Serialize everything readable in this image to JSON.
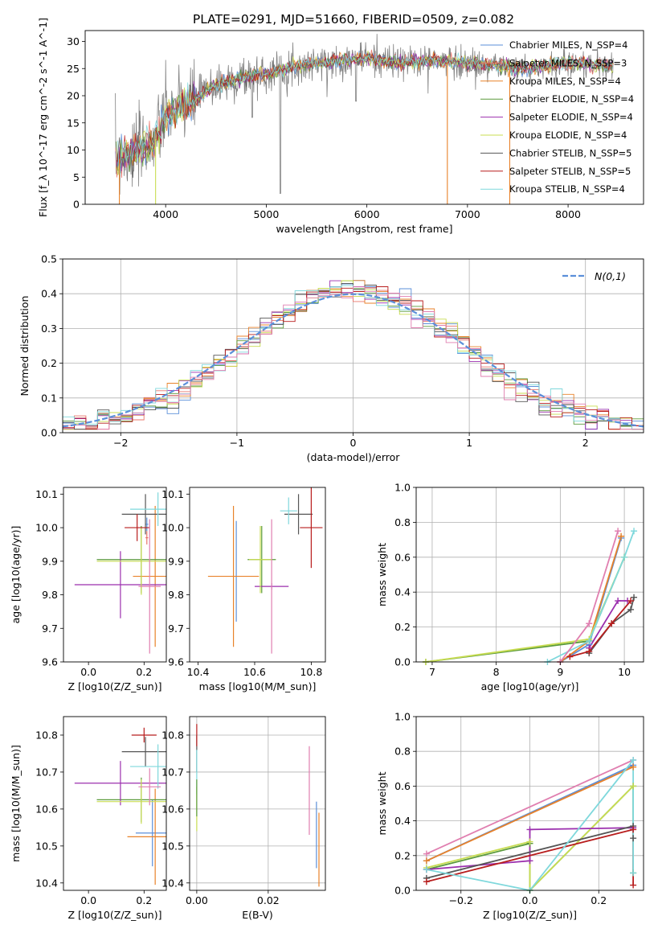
{
  "title": "PLATE=0291, MJD=51660, FIBERID=0509, z=0.082",
  "colors": {
    "Chabrier MILES": "#5b8fd9",
    "Salpeter MILES": "#e8756a",
    "Kroupa MILES": "#e8822a",
    "Chabrier ELODIE": "#5a9a3a",
    "Salpeter ELODIE": "#9b2fae",
    "Kroupa ELODIE": "#c8dc52",
    "Chabrier STELIB": "#555555",
    "Salpeter STELIB": "#b81d1d",
    "Kroupa STELIB": "#7fd8dc",
    "extra_pink": "#e07fb0",
    "normal_line": "#5b8fd9",
    "data_gray": "#808080"
  },
  "chart_data": [
    {
      "id": "spectrum",
      "type": "line",
      "title": "PLATE=0291, MJD=51660, FIBERID=0509, z=0.082",
      "xlabel": "wavelength [Angstrom, rest frame]",
      "ylabel": "Flux [f_λ 10^-17 erg cm^-2 s^-1 A^-1]",
      "xlim": [
        3200,
        8750
      ],
      "ylim": [
        0,
        32
      ],
      "xticks": [
        4000,
        5000,
        6000,
        7000,
        8000
      ],
      "yticks": [
        0,
        5,
        10,
        15,
        20,
        25,
        30
      ],
      "legend_position": "top-right",
      "legend": [
        "Chabrier MILES, N_SSP=4",
        "Salpeter MILES, N_SSP=3",
        "Kroupa MILES, N_SSP=4",
        "Chabrier ELODIE, N_SSP=4",
        "Salpeter ELODIE, N_SSP=4",
        "Kroupa ELODIE, N_SSP=4",
        "Chabrier STELIB, N_SSP=5",
        "Salpeter STELIB, N_SSP=5",
        "Kroupa STELIB, N_SSP=4"
      ],
      "continuum": {
        "x": [
          3500,
          3700,
          3900,
          4000,
          4100,
          4300,
          4500,
          4800,
          5000,
          5200,
          5500,
          5800,
          6000,
          6300,
          6600,
          7000,
          7300,
          7600,
          8000,
          8400
        ],
        "y": [
          8,
          9.5,
          12,
          16,
          17.5,
          19.5,
          22,
          23.5,
          24,
          25,
          26,
          26.5,
          27,
          26,
          26.5,
          26,
          25.5,
          25,
          26,
          25.5
        ]
      }
    },
    {
      "id": "residuals",
      "type": "histogram",
      "xlabel": "(data-model)/error",
      "ylabel": "Normed distribution",
      "xlim": [
        -2.5,
        2.5
      ],
      "ylim": [
        0,
        0.5
      ],
      "xticks": [
        -2,
        -1,
        0,
        1,
        2
      ],
      "yticks": [
        0.0,
        0.1,
        0.2,
        0.3,
        0.4,
        0.5
      ],
      "legend_position": "top-right",
      "legend": [
        "N(0,1)"
      ],
      "bin_width": 0.1,
      "grid": true
    },
    {
      "id": "age_vs_Z",
      "type": "scatter",
      "xlabel": "Z [log10(Z/Z_sun)]",
      "ylabel": "age  [log10(age/yr)]",
      "xlim": [
        -0.09,
        0.28
      ],
      "ylim": [
        9.6,
        10.12
      ],
      "xticks": [
        0.0,
        0.2
      ],
      "yticks": [
        9.6,
        9.7,
        9.8,
        9.9,
        10.0,
        10.1
      ],
      "points": [
        {
          "model": "Chabrier MILES",
          "x": 0.21,
          "y": 10.01,
          "xerr": 0.005,
          "yerr": 0.02
        },
        {
          "model": "Salpeter MILES",
          "x": 0.21,
          "y": 9.97,
          "xerr": 0.005,
          "yerr": 0.02
        },
        {
          "model": "Kroupa MILES",
          "x": 0.24,
          "y": 9.855,
          "xerr": 0.08,
          "yerr": 0.21
        },
        {
          "model": "Chabrier ELODIE",
          "x": 0.19,
          "y": 9.905,
          "xerr": 0.16,
          "yerr": 0.1
        },
        {
          "model": "Salpeter ELODIE",
          "x": 0.115,
          "y": 9.83,
          "xerr": 0.165,
          "yerr": 0.1
        },
        {
          "model": "Kroupa ELODIE",
          "x": 0.19,
          "y": 9.9,
          "xerr": 0.16,
          "yerr": 0.1
        },
        {
          "model": "Chabrier STELIB",
          "x": 0.205,
          "y": 10.04,
          "xerr": 0.085,
          "yerr": 0.06
        },
        {
          "model": "Salpeter STELIB",
          "x": 0.175,
          "y": 10.0,
          "xerr": 0.045,
          "yerr": 0.04
        },
        {
          "model": "Kroupa STELIB",
          "x": 0.25,
          "y": 10.055,
          "xerr": 0.1,
          "yerr": 0.05
        },
        {
          "model": "extra_pink",
          "x": 0.22,
          "y": 9.825,
          "xerr": 0.04,
          "yerr": 0.2
        }
      ]
    },
    {
      "id": "age_vs_mass",
      "type": "scatter",
      "xlabel": "mass [log10(M/M_sun)]",
      "ylabel": "",
      "xlim": [
        10.37,
        10.85
      ],
      "ylim": [
        9.6,
        10.12
      ],
      "xticks": [
        10.4,
        10.6,
        10.8
      ],
      "yticks": [
        9.6,
        9.7,
        9.8,
        9.9,
        10.0,
        10.1
      ],
      "points": [
        {
          "model": "Chabrier MILES",
          "x": 10.535,
          "y": 9.87,
          "xerr": 0.0,
          "yerr": 0.15
        },
        {
          "model": "Kroupa MILES",
          "x": 10.525,
          "y": 9.855,
          "xerr": 0.09,
          "yerr": 0.21
        },
        {
          "model": "Chabrier ELODIE",
          "x": 10.625,
          "y": 9.905,
          "xerr": 0.05,
          "yerr": 0.1
        },
        {
          "model": "Salpeter ELODIE",
          "x": 10.66,
          "y": 9.825,
          "xerr": 0.06,
          "yerr": 0.01
        },
        {
          "model": "Kroupa ELODIE",
          "x": 10.62,
          "y": 9.905,
          "xerr": 0.04,
          "yerr": 0.1
        },
        {
          "model": "Chabrier STELIB",
          "x": 10.755,
          "y": 10.04,
          "xerr": 0.05,
          "yerr": 0.06
        },
        {
          "model": "Salpeter STELIB",
          "x": 10.8,
          "y": 10.0,
          "xerr": 0.04,
          "yerr": 0.12
        },
        {
          "model": "Kroupa STELIB",
          "x": 10.72,
          "y": 10.05,
          "xerr": 0.03,
          "yerr": 0.04
        },
        {
          "model": "extra_pink",
          "x": 10.66,
          "y": 9.825,
          "xerr": 0.0,
          "yerr": 0.2
        }
      ]
    },
    {
      "id": "weight_vs_age",
      "type": "line",
      "xlabel": "age  [log10(age/yr)]",
      "ylabel": "mass weight",
      "xlim": [
        6.75,
        10.3
      ],
      "ylim": [
        0,
        1.0
      ],
      "xticks": [
        7,
        8,
        9,
        10
      ],
      "yticks": [
        0.0,
        0.2,
        0.4,
        0.6,
        0.8,
        1.0
      ],
      "grid": true,
      "series": [
        {
          "model": "Chabrier MILES",
          "x": [
            9.0,
            9.45,
            9.95
          ],
          "y": [
            0.0,
            0.1,
            0.71
          ]
        },
        {
          "model": "Kroupa MILES",
          "x": [
            9.0,
            9.45,
            9.95
          ],
          "y": [
            0.0,
            0.12,
            0.72
          ]
        },
        {
          "model": "Chabrier ELODIE",
          "x": [
            6.9,
            9.45,
            10.0
          ],
          "y": [
            0.0,
            0.12,
            0.6
          ]
        },
        {
          "model": "Kroupa ELODIE",
          "x": [
            6.9,
            9.45,
            10.0
          ],
          "y": [
            0.0,
            0.13,
            0.6
          ]
        },
        {
          "model": "Salpeter ELODIE",
          "x": [
            9.45,
            9.9,
            10.05
          ],
          "y": [
            0.08,
            0.35,
            0.35
          ]
        },
        {
          "model": "Chabrier STELIB",
          "x": [
            9.45,
            9.8,
            10.1,
            10.15
          ],
          "y": [
            0.05,
            0.22,
            0.3,
            0.37
          ]
        },
        {
          "model": "Salpeter STELIB",
          "x": [
            9.15,
            9.45,
            9.8,
            10.1
          ],
          "y": [
            0.03,
            0.06,
            0.22,
            0.35
          ]
        },
        {
          "model": "Kroupa STELIB",
          "x": [
            8.8,
            9.45,
            10.0,
            10.15
          ],
          "y": [
            0.0,
            0.12,
            0.6,
            0.75
          ]
        },
        {
          "model": "extra_pink",
          "x": [
            9.0,
            9.45,
            9.9
          ],
          "y": [
            0.0,
            0.22,
            0.75
          ]
        }
      ]
    },
    {
      "id": "mass_vs_Z",
      "type": "scatter",
      "xlabel": "Z [log10(Z/Z_sun)]",
      "ylabel": "mass [log10(M/M_sun)]",
      "xlim": [
        -0.09,
        0.28
      ],
      "ylim": [
        10.38,
        10.85
      ],
      "xticks": [
        0.0,
        0.2
      ],
      "yticks": [
        10.4,
        10.5,
        10.6,
        10.7,
        10.8
      ],
      "points": [
        {
          "model": "Chabrier MILES",
          "x": 0.23,
          "y": 10.535,
          "xerr": 0.06,
          "yerr": 0.09
        },
        {
          "model": "Kroupa MILES",
          "x": 0.24,
          "y": 10.525,
          "xerr": 0.1,
          "yerr": 0.13
        },
        {
          "model": "Chabrier ELODIE",
          "x": 0.19,
          "y": 10.625,
          "xerr": 0.16,
          "yerr": 0.06
        },
        {
          "model": "Salpeter ELODIE",
          "x": 0.115,
          "y": 10.67,
          "xerr": 0.165,
          "yerr": 0.06
        },
        {
          "model": "Kroupa ELODIE",
          "x": 0.19,
          "y": 10.62,
          "xerr": 0.16,
          "yerr": 0.06
        },
        {
          "model": "Chabrier STELIB",
          "x": 0.205,
          "y": 10.755,
          "xerr": 0.085,
          "yerr": 0.04
        },
        {
          "model": "Salpeter STELIB",
          "x": 0.2,
          "y": 10.8,
          "xerr": 0.045,
          "yerr": 0.02
        },
        {
          "model": "Kroupa STELIB",
          "x": 0.25,
          "y": 10.715,
          "xerr": 0.1,
          "yerr": 0.06
        },
        {
          "model": "extra_pink",
          "x": 0.22,
          "y": 10.66,
          "xerr": 0.04,
          "yerr": 0.05
        }
      ]
    },
    {
      "id": "mass_vs_ebv",
      "type": "scatter",
      "xlabel": "E(B-V)",
      "ylabel": "",
      "xlim": [
        -0.002,
        0.036
      ],
      "ylim": [
        10.38,
        10.85
      ],
      "xticks": [
        0.0,
        0.02
      ],
      "yticks": [
        10.4,
        10.5,
        10.6,
        10.7,
        10.8
      ],
      "grid": true,
      "points": [
        {
          "model": "Chabrier STELIB",
          "x": 0.0,
          "y": 10.75,
          "xerr": 0.0,
          "yerr": 0.05
        },
        {
          "model": "Salpeter STELIB",
          "x": 0.0,
          "y": 10.8,
          "xerr": 0.0,
          "yerr": 0.03
        },
        {
          "model": "Kroupa STELIB",
          "x": 0.0,
          "y": 10.7,
          "xerr": 0.0,
          "yerr": 0.06
        },
        {
          "model": "Kroupa ELODIE",
          "x": 0.0,
          "y": 10.6,
          "xerr": 0.0,
          "yerr": 0.06
        },
        {
          "model": "Chabrier ELODIE",
          "x": 0.0,
          "y": 10.63,
          "xerr": 0.0,
          "yerr": 0.05
        },
        {
          "model": "extra_pink",
          "x": 0.0315,
          "y": 10.65,
          "xerr": 0.0,
          "yerr": 0.12
        },
        {
          "model": "Chabrier MILES",
          "x": 0.0335,
          "y": 10.53,
          "xerr": 0.0,
          "yerr": 0.09
        },
        {
          "model": "Kroupa MILES",
          "x": 0.0342,
          "y": 10.49,
          "xerr": 0.0,
          "yerr": 0.1
        }
      ]
    },
    {
      "id": "weight_vs_Z",
      "type": "line",
      "xlabel": "Z [log10(Z/Z_sun)]",
      "ylabel": "mass weight",
      "xlim": [
        -0.33,
        0.33
      ],
      "ylim": [
        0,
        1.0
      ],
      "xticks": [
        -0.2,
        0.0,
        0.2
      ],
      "yticks": [
        0.0,
        0.2,
        0.4,
        0.6,
        0.8,
        1.0
      ],
      "grid": true,
      "series": [
        {
          "model": "Chabrier MILES",
          "x": [
            -0.3,
            0.3
          ],
          "y": [
            0.17,
            0.72
          ]
        },
        {
          "model": "Kroupa MILES",
          "x": [
            -0.3,
            0.3
          ],
          "y": [
            0.17,
            0.71
          ]
        },
        {
          "model": "extra_pink",
          "x": [
            -0.3,
            0.3
          ],
          "y": [
            0.21,
            0.75
          ]
        },
        {
          "model": "Chabrier ELODIE",
          "x": [
            -0.3,
            0.0,
            0.0,
            0.3,
            0.3
          ],
          "y": [
            0.12,
            0.27,
            0.0,
            0.6,
            0.1
          ]
        },
        {
          "model": "Kroupa ELODIE",
          "x": [
            -0.3,
            0.0,
            0.0,
            0.3
          ],
          "y": [
            0.13,
            0.28,
            0.0,
            0.6
          ]
        },
        {
          "model": "Salpeter ELODIE",
          "x": [
            -0.3,
            0.0,
            0.0,
            0.3
          ],
          "y": [
            0.12,
            0.17,
            0.35,
            0.36
          ]
        },
        {
          "model": "Chabrier STELIB",
          "x": [
            -0.3,
            0.3,
            0.3
          ],
          "y": [
            0.07,
            0.37,
            0.3
          ]
        },
        {
          "model": "Salpeter STELIB",
          "x": [
            -0.3,
            0.3,
            0.3
          ],
          "y": [
            0.05,
            0.35,
            0.03
          ]
        },
        {
          "model": "Kroupa STELIB",
          "x": [
            -0.3,
            0.0,
            0.3,
            0.3
          ],
          "y": [
            0.12,
            0.0,
            0.75,
            0.1
          ]
        }
      ]
    }
  ]
}
